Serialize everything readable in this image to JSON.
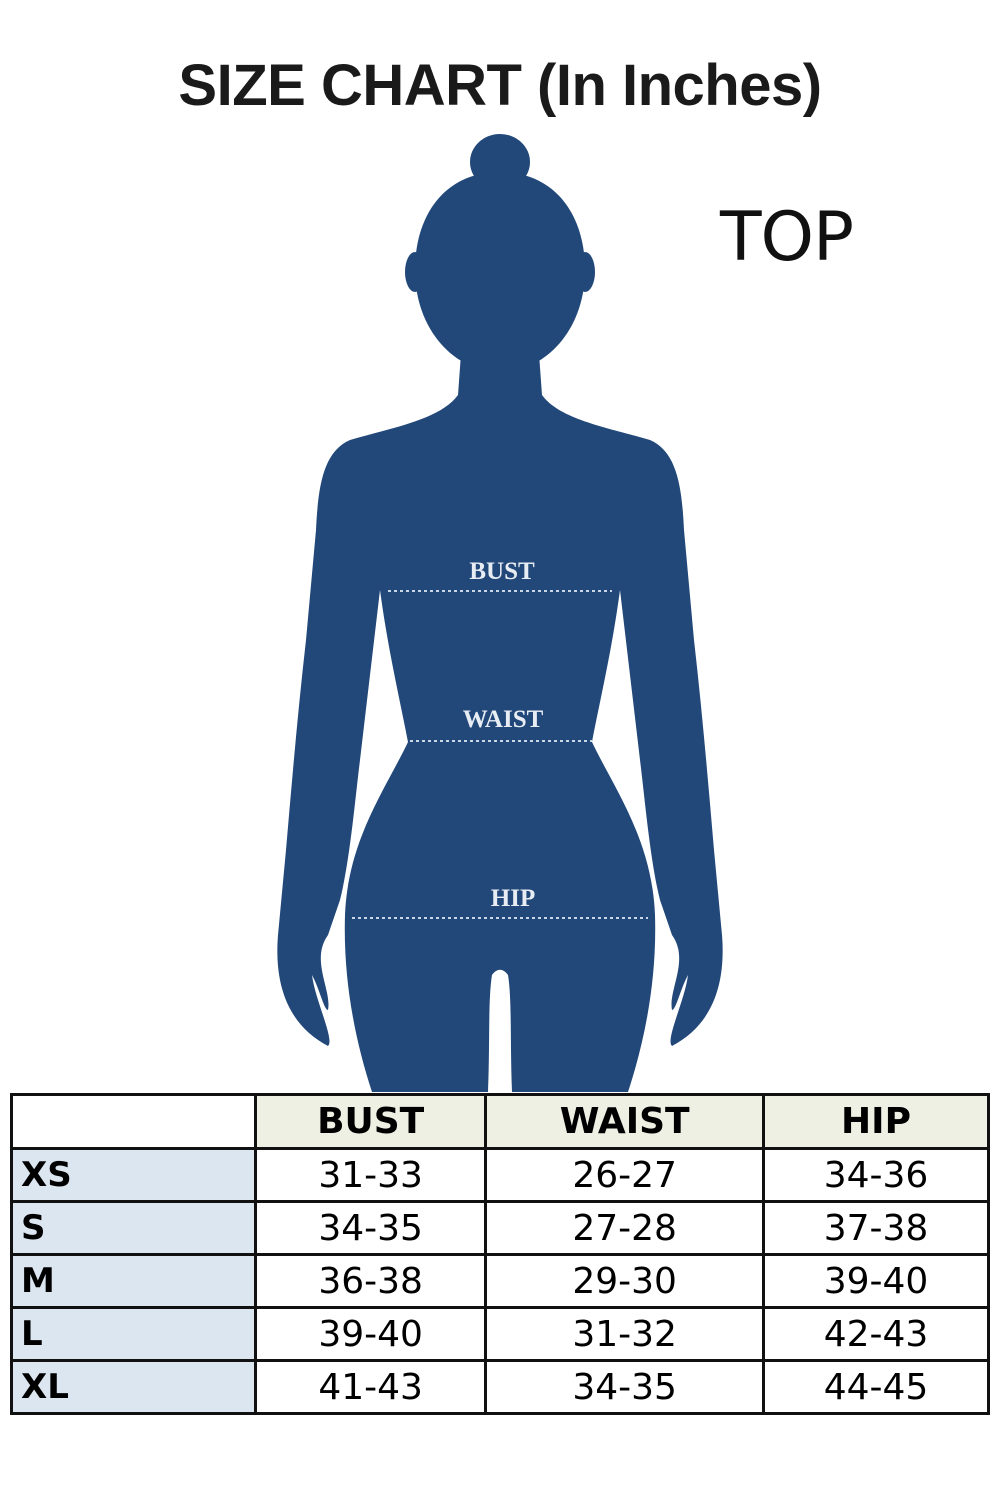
{
  "title": "SIZE CHART (In Inches)",
  "garment": "TOP",
  "colors": {
    "silhouette": "#22487a",
    "header_fill": "#eef0e3",
    "size_column_fill": "#dce6f0"
  },
  "figure": {
    "labels": {
      "bust": "BUST",
      "waist": "WAIST",
      "hip": "HIP"
    }
  },
  "table": {
    "headers": [
      "",
      "BUST",
      "WAIST",
      "HIP"
    ],
    "rows": [
      {
        "size": "XS",
        "bust": "31-33",
        "waist": "26-27",
        "hip": "34-36"
      },
      {
        "size": "S",
        "bust": "34-35",
        "waist": "27-28",
        "hip": "37-38"
      },
      {
        "size": "M",
        "bust": "36-38",
        "waist": "29-30",
        "hip": "39-40"
      },
      {
        "size": "L",
        "bust": "39-40",
        "waist": "31-32",
        "hip": "42-43"
      },
      {
        "size": "XL",
        "bust": "41-43",
        "waist": "34-35",
        "hip": "44-45"
      }
    ]
  }
}
